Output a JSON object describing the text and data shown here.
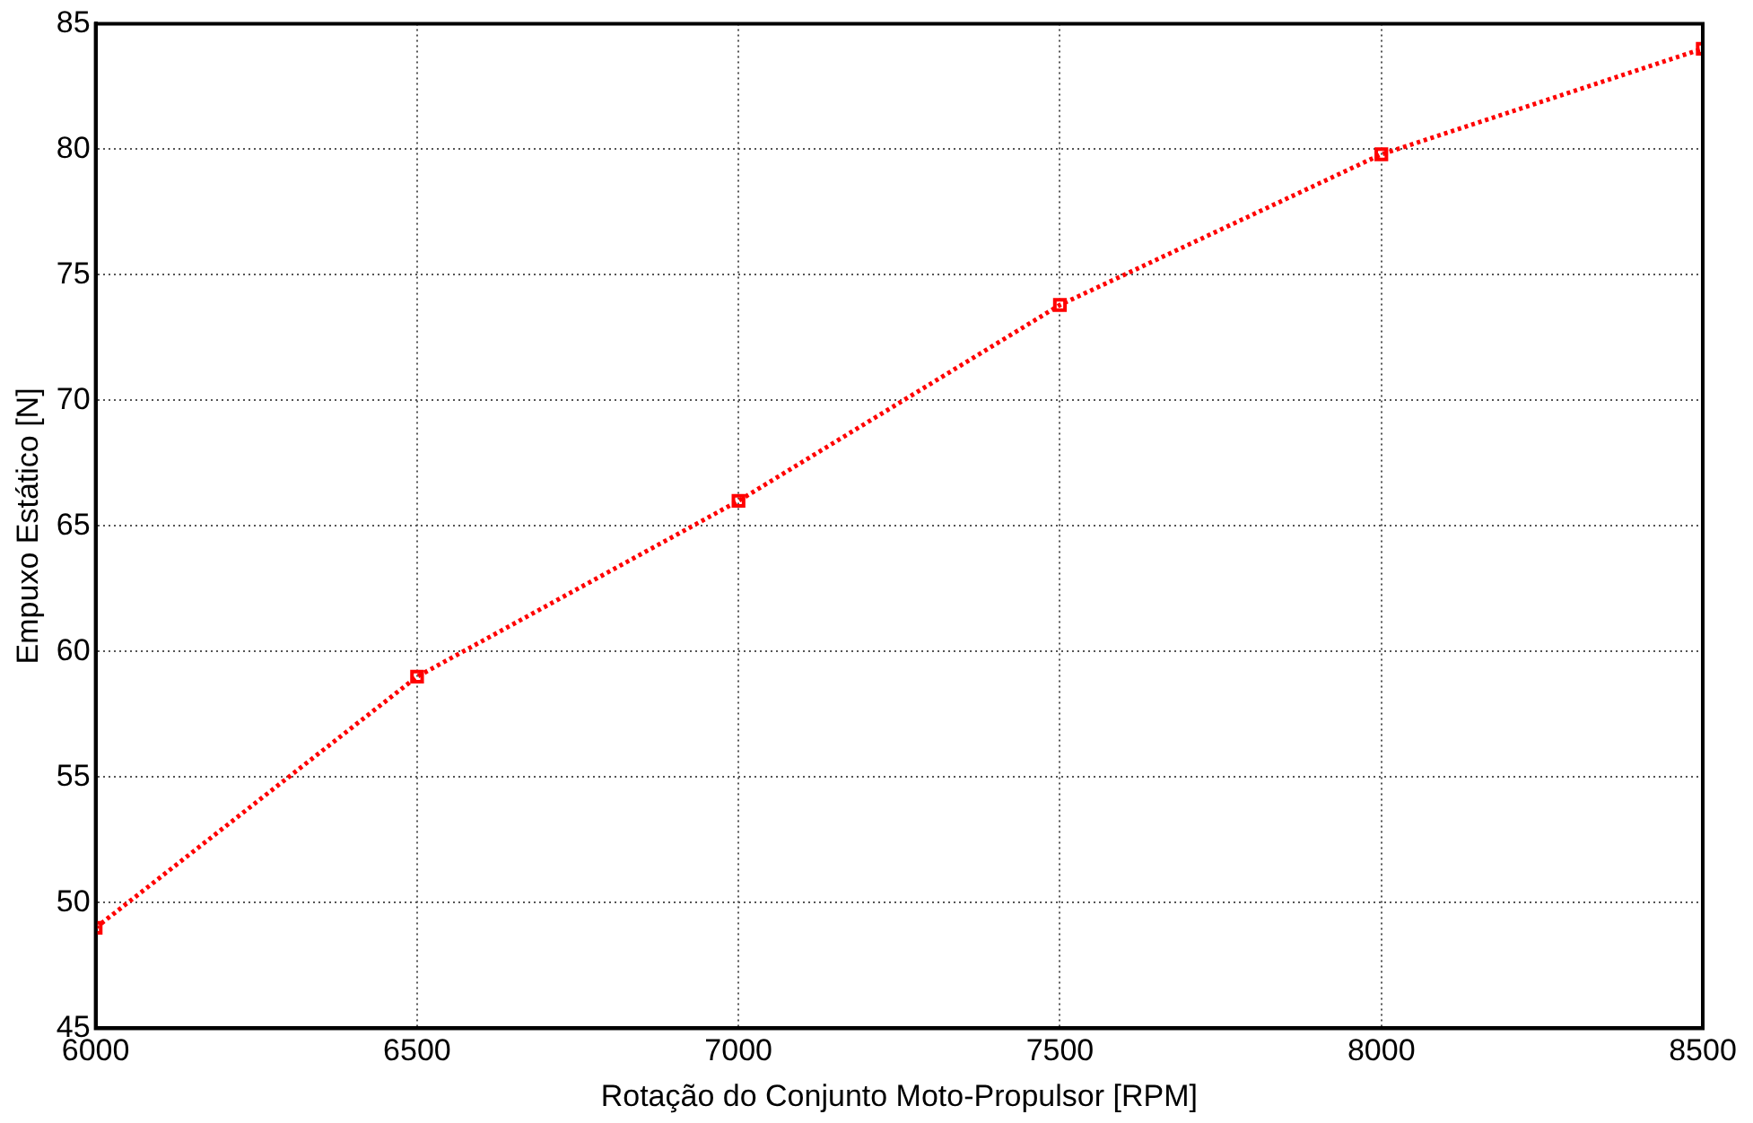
{
  "chart_data": {
    "type": "line",
    "xlabel": "Rotação do Conjunto Moto-Propulsor [RPM]",
    "ylabel": "Empuxo Estático [N]",
    "x": [
      6000,
      6500,
      7000,
      7500,
      8000,
      8500
    ],
    "series": [
      {
        "color": "#ff0000",
        "values": [
          49,
          59,
          66,
          73.8,
          79.8,
          84
        ]
      }
    ],
    "xlim": [
      6000,
      8500
    ],
    "xticks": [
      6000,
      6500,
      7000,
      7500,
      8000,
      8500
    ],
    "ylim": [
      45,
      85
    ],
    "yticks": [
      45,
      50,
      55,
      60,
      65,
      70,
      75,
      80,
      85
    ],
    "grid": true,
    "legend": false,
    "marker": "square",
    "line_style": "dotted"
  }
}
